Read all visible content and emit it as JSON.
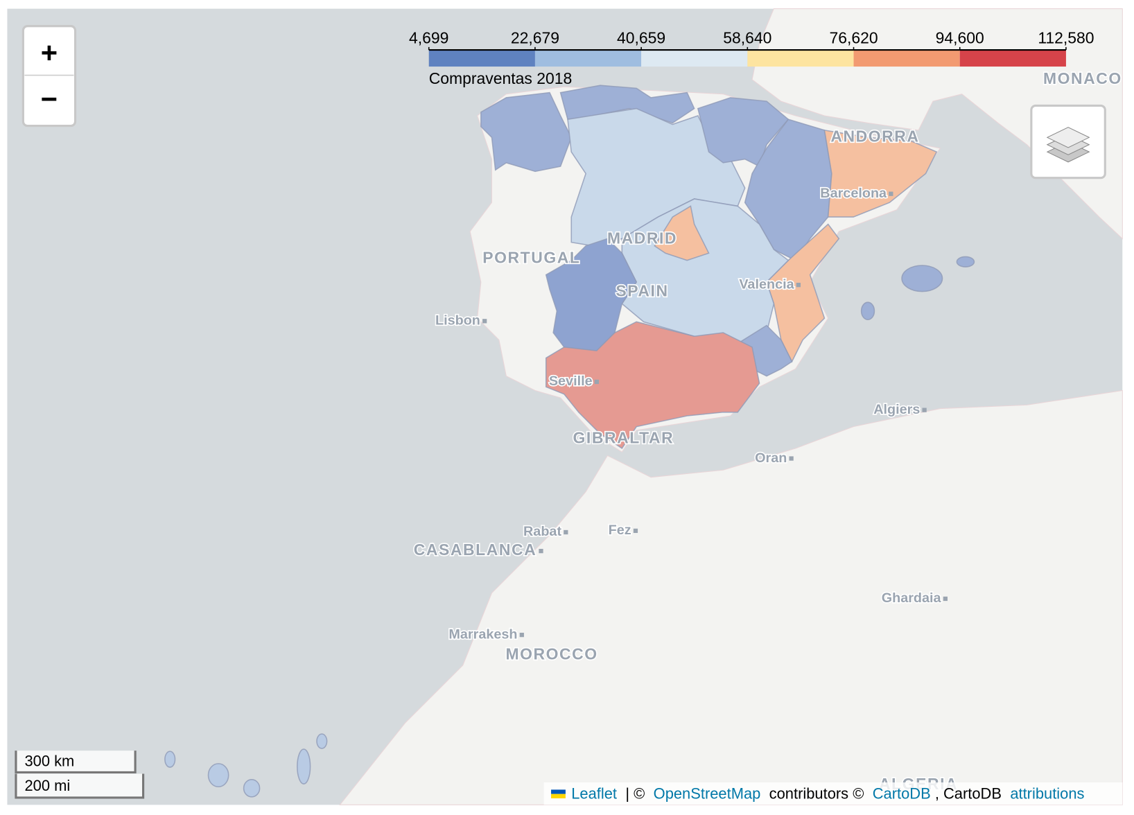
{
  "zoom_in": "+",
  "zoom_out": "−",
  "legend": {
    "title": "Compraventas 2018",
    "xlim": [
      4699,
      112580
    ],
    "ticks": [
      {
        "value": 4699,
        "label": "4,699"
      },
      {
        "value": 22679,
        "label": "22,679"
      },
      {
        "value": 40659,
        "label": "40,659"
      },
      {
        "value": 58640,
        "label": "58,640"
      },
      {
        "value": 76620,
        "label": "76,620"
      },
      {
        "value": 94600,
        "label": "94,600"
      },
      {
        "value": 112580,
        "label": "112,580"
      }
    ],
    "colors": [
      "#5f82c0",
      "#9fbde0",
      "#dde9f2",
      "#fde4a0",
      "#f29a71",
      "#d6434a"
    ]
  },
  "place_labels": [
    "PORTUGAL",
    "SPAIN",
    "MADRID",
    "Lisbon",
    "Seville",
    "GIBRALTAR",
    "ANDORRA",
    "Barcelona",
    "Valencia",
    "MONACO",
    "Algiers",
    "Oran",
    "Rabat",
    "Fez",
    "CASABLANCA",
    "Ghardaia",
    "Marrakesh",
    "MOROCCO",
    "ALGERIA"
  ],
  "scale": [
    "300 km",
    "200 mi"
  ],
  "attribution": {
    "leaflet": "Leaflet",
    "sep": "| ©",
    "osm": "OpenStreetMap",
    "contrib": "contributors ©",
    "cartodb": "CartoDB",
    "cartodb2": ", CartoDB",
    "attributions": "attributions"
  }
}
